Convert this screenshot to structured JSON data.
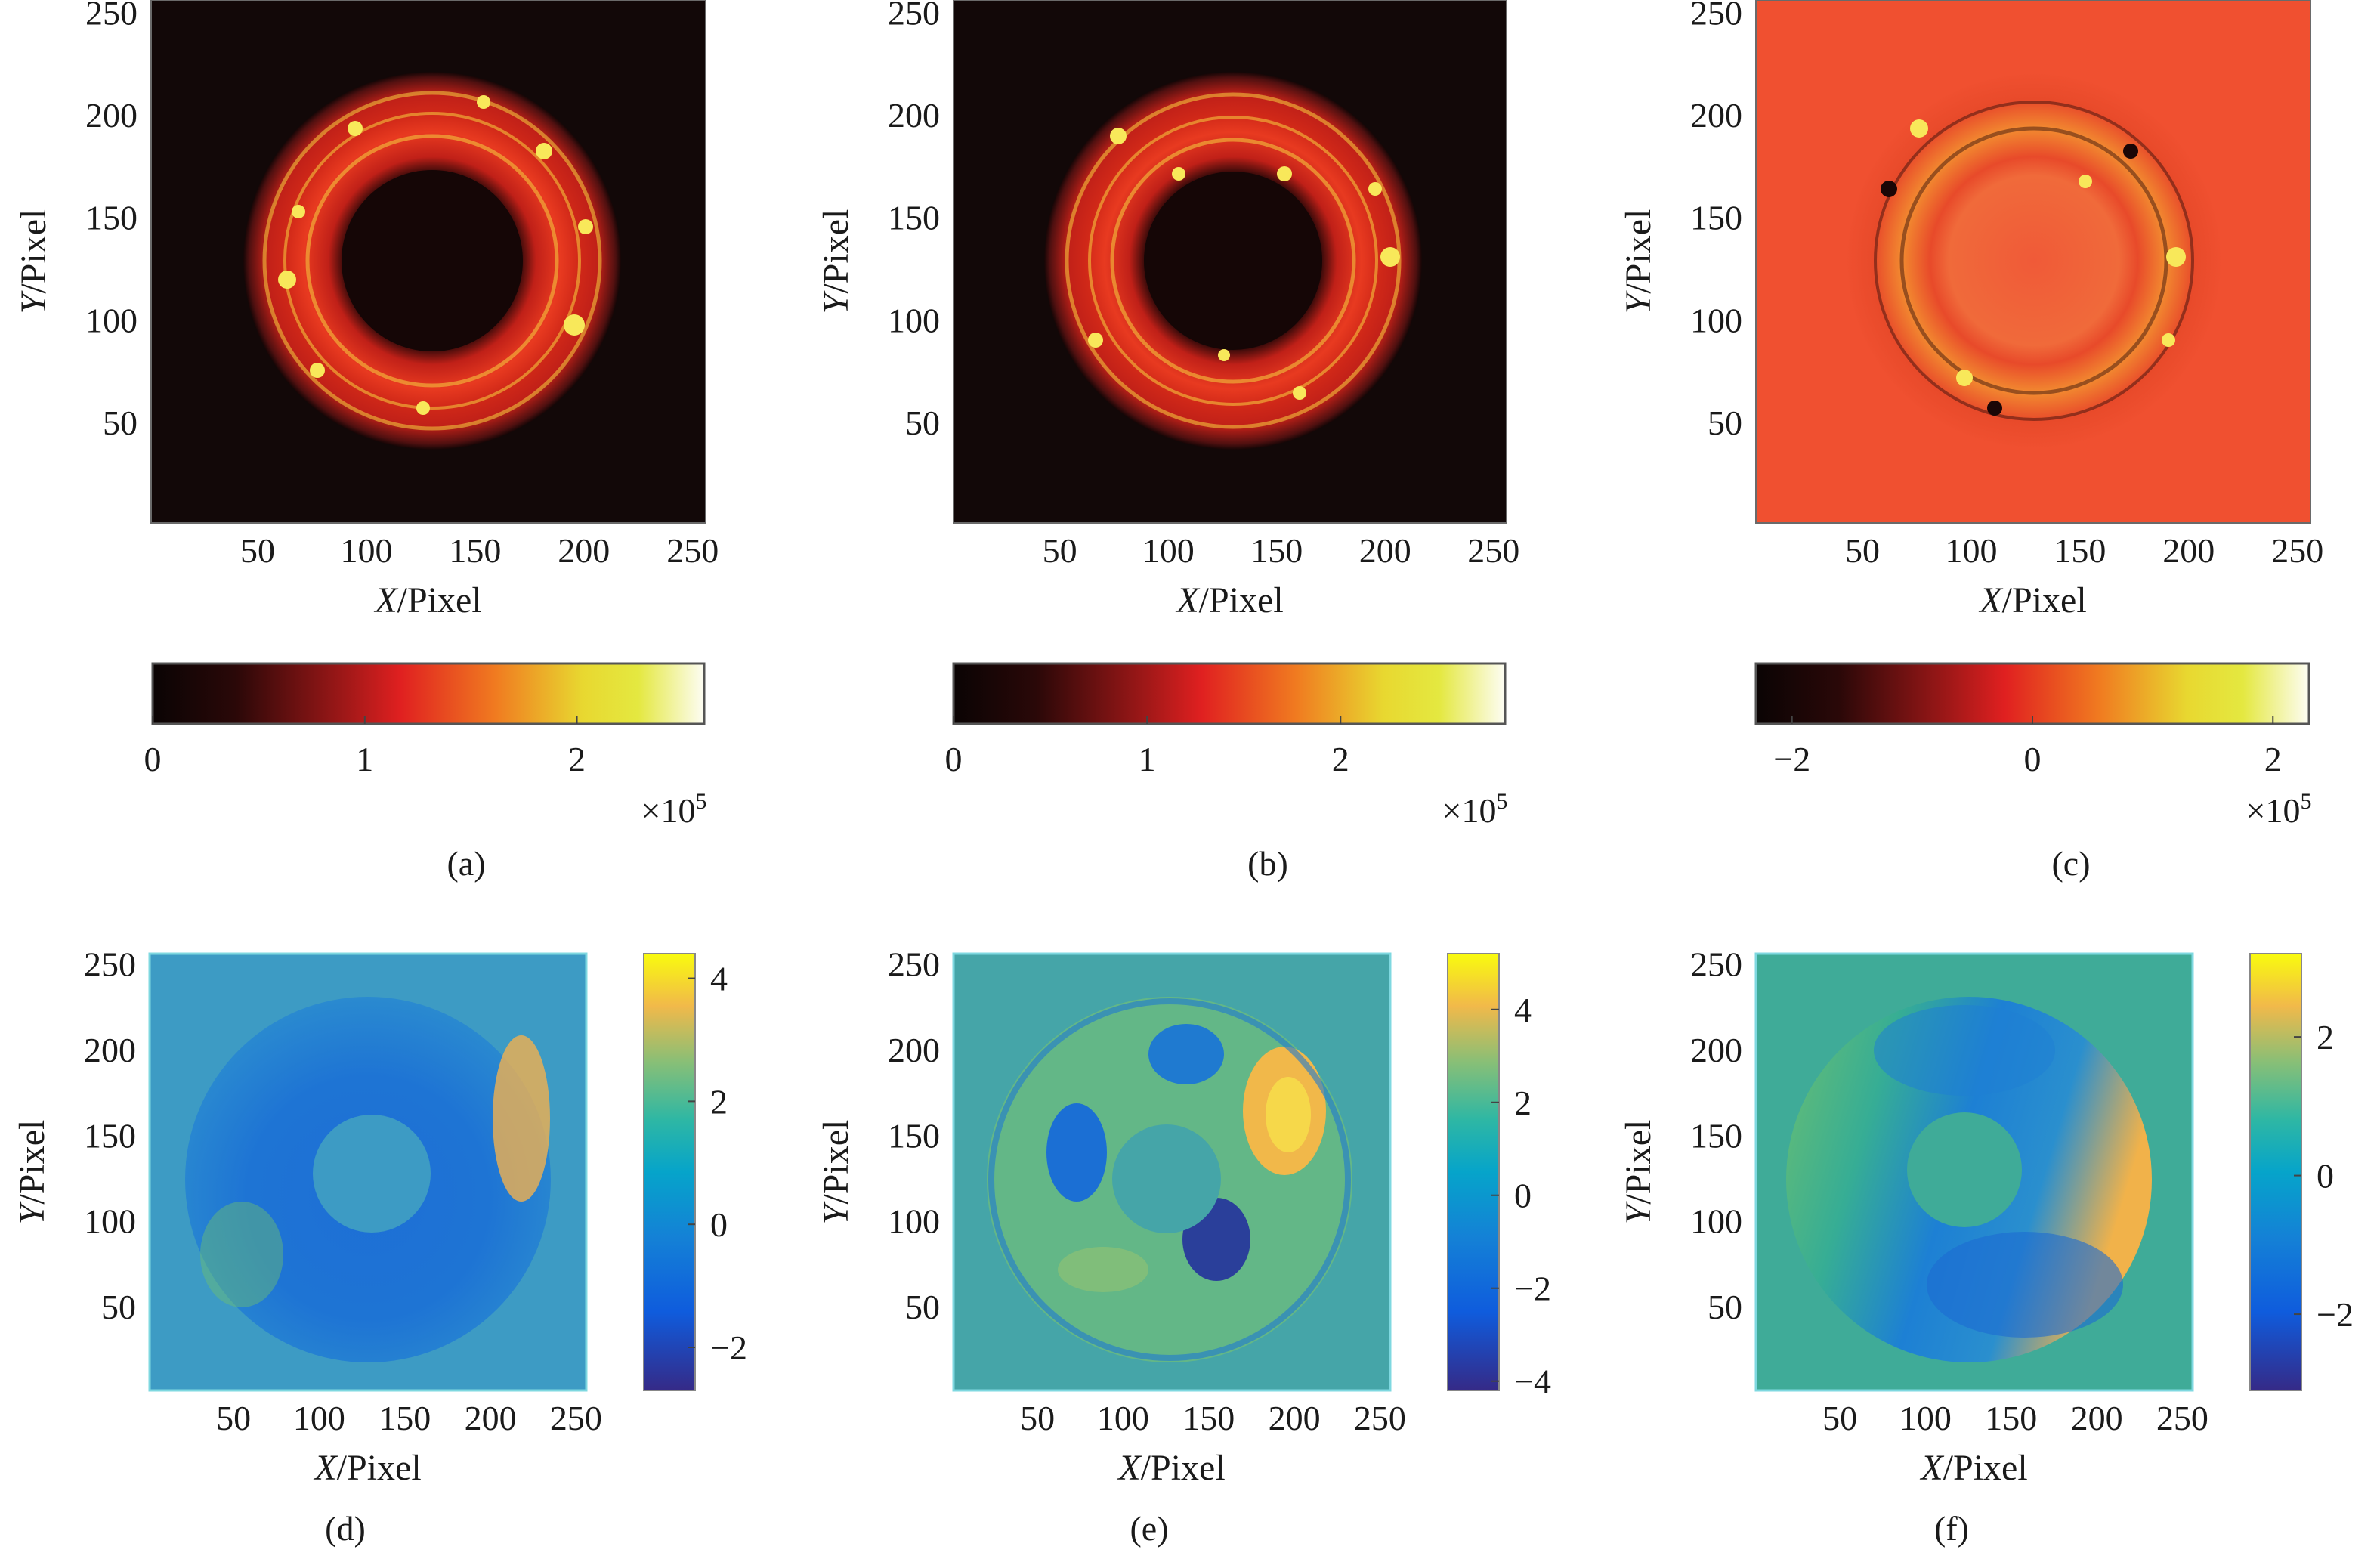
{
  "figure": {
    "panels": [
      {
        "id": "a",
        "caption": "(a)",
        "xlabel": "X/Pixel",
        "ylabel": "Y/Pixel",
        "xticks": [
          "50",
          "100",
          "150",
          "200",
          "250"
        ],
        "yticks": [
          "50",
          "100",
          "150",
          "200",
          "250"
        ],
        "colorbar": {
          "orientation": "horizontal",
          "ticks": [
            "0",
            "1",
            "2"
          ],
          "exponent": "×10^5"
        }
      },
      {
        "id": "b",
        "caption": "(b)",
        "xlabel": "X/Pixel",
        "ylabel": "Y/Pixel",
        "xticks": [
          "50",
          "100",
          "150",
          "200",
          "250"
        ],
        "yticks": [
          "50",
          "100",
          "150",
          "200",
          "250"
        ],
        "colorbar": {
          "orientation": "horizontal",
          "ticks": [
            "0",
            "1",
            "2"
          ],
          "exponent": "×10^5"
        }
      },
      {
        "id": "c",
        "caption": "(c)",
        "xlabel": "X/Pixel",
        "ylabel": "Y/Pixel",
        "xticks": [
          "50",
          "100",
          "150",
          "200",
          "250"
        ],
        "yticks": [
          "50",
          "100",
          "150",
          "200",
          "250"
        ],
        "colorbar": {
          "orientation": "horizontal",
          "ticks": [
            "−2",
            "0",
            "2"
          ],
          "exponent": "×10^5"
        }
      },
      {
        "id": "d",
        "caption": "(d)",
        "xlabel": "X/Pixel",
        "ylabel": "Y/Pixel",
        "xticks": [
          "50",
          "100",
          "150",
          "200",
          "250"
        ],
        "yticks": [
          "50",
          "100",
          "150",
          "200",
          "250"
        ],
        "colorbar": {
          "orientation": "vertical",
          "ticks": [
            "4",
            "2",
            "0",
            "−2"
          ]
        }
      },
      {
        "id": "e",
        "caption": "(e)",
        "xlabel": "X/Pixel",
        "ylabel": "Y/Pixel",
        "xticks": [
          "50",
          "100",
          "150",
          "200",
          "250"
        ],
        "yticks": [
          "50",
          "100",
          "150",
          "200",
          "250"
        ],
        "colorbar": {
          "orientation": "vertical",
          "ticks": [
            "4",
            "2",
            "0",
            "−2",
            "−4"
          ]
        }
      },
      {
        "id": "f",
        "caption": "(f)",
        "xlabel": "X/Pixel",
        "ylabel": "Y/Pixel",
        "xticks": [
          "50",
          "100",
          "150",
          "200",
          "250"
        ],
        "yticks": [
          "50",
          "100",
          "150",
          "200",
          "250"
        ],
        "colorbar": {
          "orientation": "vertical",
          "ticks": [
            "2",
            "0",
            "−2"
          ]
        }
      }
    ]
  },
  "chart_data": [
    {
      "type": "heatmap",
      "panel": "a",
      "xlabel": "X/Pixel",
      "ylabel": "Y/Pixel",
      "xlim": [
        1,
        256
      ],
      "ylim": [
        1,
        256
      ],
      "colormap": "hot",
      "clim": [
        0,
        260000
      ],
      "colorbar_ticks": [
        0,
        1,
        2
      ],
      "colorbar_exponent": "×10^5",
      "ring_center": [
        128,
        128
      ],
      "ring_inner_radius": 45,
      "ring_outer_radius": 90
    },
    {
      "type": "heatmap",
      "panel": "b",
      "xlabel": "X/Pixel",
      "ylabel": "Y/Pixel",
      "xlim": [
        1,
        256
      ],
      "ylim": [
        1,
        256
      ],
      "colormap": "hot",
      "clim": [
        0,
        285000
      ],
      "colorbar_ticks": [
        0,
        1,
        2
      ],
      "colorbar_exponent": "×10^5",
      "ring_center": [
        128,
        128
      ],
      "ring_inner_radius": 45,
      "ring_outer_radius": 90
    },
    {
      "type": "heatmap",
      "panel": "c",
      "xlabel": "X/Pixel",
      "ylabel": "Y/Pixel",
      "xlim": [
        1,
        256
      ],
      "ylim": [
        1,
        256
      ],
      "colormap": "hot",
      "clim": [
        -230000,
        230000
      ],
      "colorbar_ticks": [
        -2,
        0,
        2
      ],
      "colorbar_exponent": "×10^5",
      "ring_center": [
        128,
        128
      ],
      "ring_inner_radius": 45,
      "ring_outer_radius": 90
    },
    {
      "type": "heatmap",
      "panel": "d",
      "xlabel": "X/Pixel",
      "ylabel": "Y/Pixel",
      "xlim": [
        1,
        256
      ],
      "ylim": [
        1,
        256
      ],
      "colormap": "parula",
      "clim": [
        -2.7,
        4.4
      ],
      "colorbar_ticks": [
        -2,
        0,
        2,
        4
      ],
      "annulus_center": [
        128,
        128
      ],
      "annulus_inner_radius": 30,
      "annulus_outer_radius": 107
    },
    {
      "type": "heatmap",
      "panel": "e",
      "xlabel": "X/Pixel",
      "ylabel": "Y/Pixel",
      "xlim": [
        1,
        256
      ],
      "ylim": [
        1,
        256
      ],
      "colormap": "parula",
      "clim": [
        -4.2,
        5.2
      ],
      "colorbar_ticks": [
        -4,
        -2,
        0,
        2,
        4
      ],
      "annulus_center": [
        128,
        128
      ],
      "annulus_inner_radius": 30,
      "annulus_outer_radius": 107
    },
    {
      "type": "heatmap",
      "panel": "f",
      "xlabel": "X/Pixel",
      "ylabel": "Y/Pixel",
      "xlim": [
        1,
        256
      ],
      "ylim": [
        1,
        256
      ],
      "colormap": "parula",
      "clim": [
        -3.1,
        3.2
      ],
      "colorbar_ticks": [
        -2,
        0,
        2
      ],
      "annulus_center": [
        128,
        128
      ],
      "annulus_inner_radius": 30,
      "annulus_outer_radius": 107
    }
  ],
  "colors": {
    "hot_black": "#120808",
    "hot_red": "#e02020",
    "hot_orange": "#f08020",
    "hot_yellow": "#e0e030",
    "hot_white": "#fcfcf0",
    "diff_background": "#f05030",
    "parula_dark": "#352a87",
    "parula_blue": "#1772d4",
    "parula_teal": "#26a8b5",
    "parula_green": "#7ebf5b",
    "parula_orange": "#f9b53a",
    "parula_yellow": "#f9fb0e",
    "d_background": "#3d9bc4",
    "e_background": "#45a5a8",
    "f_background": "#3fab98"
  }
}
